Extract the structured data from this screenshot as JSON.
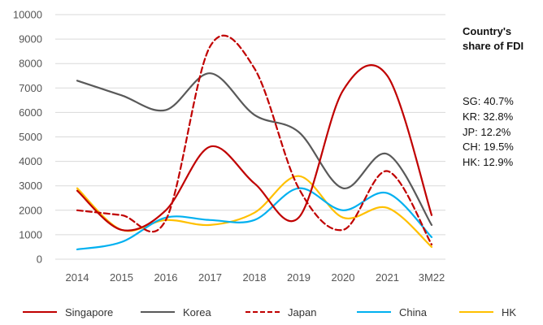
{
  "chart_data": {
    "type": "line",
    "title": "",
    "xlabel": "",
    "ylabel": "",
    "ylim": [
      0,
      10000
    ],
    "yticks": [
      0,
      1000,
      2000,
      3000,
      4000,
      5000,
      6000,
      7000,
      8000,
      9000,
      10000
    ],
    "categories": [
      "2014",
      "2015",
      "2016",
      "2017",
      "2018",
      "2019",
      "2020",
      "2021",
      "3M22"
    ],
    "grid": "horizontal",
    "legend_position": "bottom",
    "series": [
      {
        "name": "Singapore",
        "color": "#c00000",
        "dash": "solid",
        "values": [
          2800,
          1200,
          2000,
          4600,
          3100,
          1700,
          6900,
          7500,
          1800
        ]
      },
      {
        "name": "Korea",
        "color": "#595959",
        "dash": "solid",
        "values": [
          7300,
          6700,
          6100,
          7600,
          5900,
          5200,
          2900,
          4300,
          1400
        ]
      },
      {
        "name": "Japan",
        "color": "#c00000",
        "dash": "dashed",
        "values": [
          2000,
          1800,
          1600,
          8700,
          7800,
          2900,
          1200,
          3600,
          600
        ]
      },
      {
        "name": "China",
        "color": "#00b0f0",
        "dash": "solid",
        "values": [
          400,
          700,
          1700,
          1600,
          1600,
          2900,
          2000,
          2700,
          900
        ]
      },
      {
        "name": "HK",
        "color": "#ffc000",
        "dash": "solid",
        "values": [
          2900,
          1200,
          1600,
          1400,
          1900,
          3400,
          1700,
          2100,
          500
        ]
      }
    ],
    "side_panel": {
      "title": "Country's share of FDI",
      "shares": [
        "SG: 40.7%",
        "KR: 32.8%",
        "JP: 12.2%",
        "CH: 19.5%",
        "HK: 12.9%"
      ]
    }
  }
}
